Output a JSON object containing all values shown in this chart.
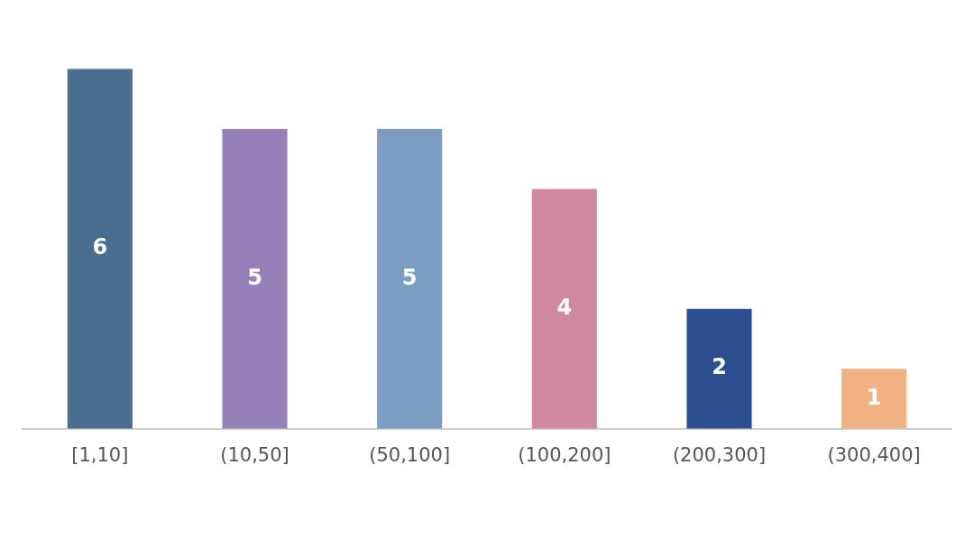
{
  "chart_data": {
    "type": "bar",
    "categories": [
      "[1,10]",
      "(10,50]",
      "(50,100]",
      "(100,200]",
      "(200,300]",
      "(300,400]"
    ],
    "values": [
      6,
      5,
      5,
      4,
      2,
      1
    ],
    "colors": [
      "#4a6e8e",
      "#9580b8",
      "#7b9dc1",
      "#d08aa0",
      "#2b4f8f",
      "#f0b183"
    ],
    "data_labels": true,
    "grid": false,
    "legend": false
  }
}
